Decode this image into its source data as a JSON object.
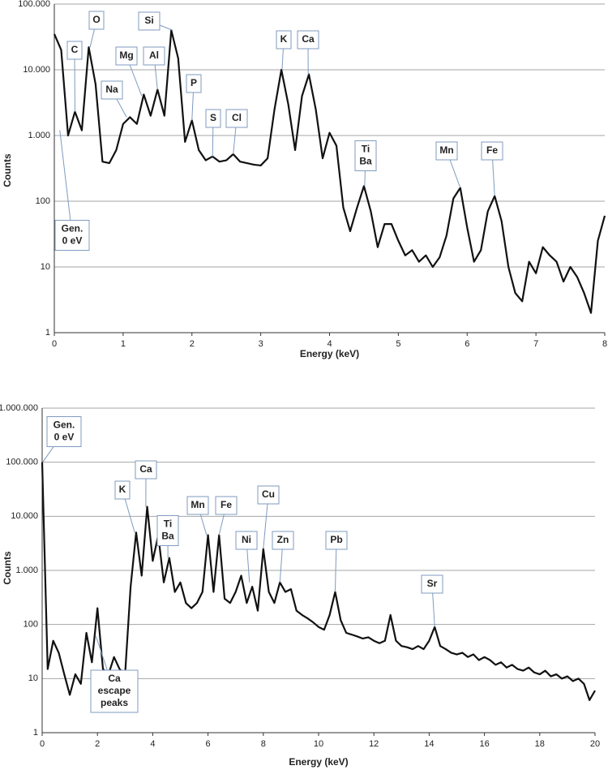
{
  "chart_data": [
    {
      "type": "line",
      "xlabel": "Energy (keV)",
      "ylabel": "Counts",
      "ylog": true,
      "grid": true,
      "color": "#111111",
      "xlim": [
        0,
        8
      ],
      "xticks": [
        0,
        1,
        2,
        3,
        4,
        5,
        6,
        7,
        8
      ],
      "ylim": [
        1,
        100000
      ],
      "yticks": [
        1,
        10,
        100,
        {
          "value": 1000,
          "label": "1.000"
        },
        {
          "value": 10000,
          "label": "10.000"
        },
        {
          "value": 100000,
          "label": "100.000"
        }
      ],
      "x": [
        0,
        0.1,
        0.2,
        0.3,
        0.4,
        0.5,
        0.6,
        0.7,
        0.8,
        0.9,
        1,
        1.1,
        1.2,
        1.3,
        1.4,
        1.5,
        1.6,
        1.7,
        1.8,
        1.9,
        2,
        2.1,
        2.2,
        2.3,
        2.4,
        2.5,
        2.6,
        2.7,
        2.8,
        2.9,
        3,
        3.1,
        3.2,
        3.3,
        3.4,
        3.5,
        3.6,
        3.7,
        3.8,
        3.9,
        4,
        4.1,
        4.2,
        4.3,
        4.4,
        4.5,
        4.6,
        4.7,
        4.8,
        4.9,
        5,
        5.1,
        5.2,
        5.3,
        5.4,
        5.5,
        5.6,
        5.7,
        5.8,
        5.9,
        6,
        6.1,
        6.2,
        6.3,
        6.4,
        6.5,
        6.6,
        6.7,
        6.8,
        6.9,
        7,
        7.1,
        7.2,
        7.3,
        7.4,
        7.5,
        7.6,
        7.7,
        7.8,
        7.9,
        8
      ],
      "values": [
        35000,
        20000,
        1000,
        2300,
        1200,
        22000,
        6000,
        400,
        380,
        600,
        1500,
        1900,
        1500,
        4200,
        2000,
        5000,
        2000,
        40000,
        15000,
        800,
        1700,
        600,
        420,
        480,
        400,
        420,
        520,
        400,
        380,
        360,
        350,
        450,
        2500,
        10000,
        3000,
        600,
        4000,
        8500,
        2500,
        450,
        1100,
        700,
        80,
        35,
        80,
        170,
        70,
        20,
        45,
        45,
        25,
        15,
        18,
        12,
        15,
        10,
        14,
        30,
        110,
        160,
        40,
        12,
        18,
        70,
        120,
        50,
        10,
        4,
        3,
        12,
        8,
        20,
        15,
        12,
        6,
        10,
        7,
        4,
        2,
        25,
        60
      ],
      "annotations": [
        {
          "lines": [
            "Gen.",
            "0 eV"
          ],
          "x": 0.08,
          "y": 1200
        },
        {
          "lines": [
            "C"
          ],
          "x": 0.3,
          "y": 2300
        },
        {
          "lines": [
            "O"
          ],
          "x": 0.52,
          "y": 22000
        },
        {
          "lines": [
            "Na"
          ],
          "x": 1.05,
          "y": 1900
        },
        {
          "lines": [
            "Mg"
          ],
          "x": 1.27,
          "y": 4000
        },
        {
          "lines": [
            "Al"
          ],
          "x": 1.5,
          "y": 5000
        },
        {
          "lines": [
            "Si"
          ],
          "x": 1.72,
          "y": 40000
        },
        {
          "lines": [
            "P"
          ],
          "x": 2.0,
          "y": 1700
        },
        {
          "lines": [
            "S"
          ],
          "x": 2.3,
          "y": 480
        },
        {
          "lines": [
            "Cl"
          ],
          "x": 2.6,
          "y": 520
        },
        {
          "lines": [
            "K"
          ],
          "x": 3.31,
          "y": 10000
        },
        {
          "lines": [
            "Ca"
          ],
          "x": 3.69,
          "y": 8500
        },
        {
          "lines": [
            "Ti",
            "Ba"
          ],
          "x": 4.51,
          "y": 170
        },
        {
          "lines": [
            "Mn"
          ],
          "x": 5.9,
          "y": 160
        },
        {
          "lines": [
            "Fe"
          ],
          "x": 6.4,
          "y": 120
        }
      ]
    },
    {
      "type": "line",
      "xlabel": "Energy (keV)",
      "ylabel": "Counts",
      "ylog": true,
      "grid": true,
      "color": "#111111",
      "xlim": [
        0,
        20
      ],
      "xticks": [
        0,
        2,
        4,
        6,
        8,
        10,
        12,
        14,
        16,
        18,
        20
      ],
      "ylim": [
        1,
        1000000
      ],
      "yticks": [
        1,
        10,
        100,
        {
          "value": 1000,
          "label": "1.000"
        },
        {
          "value": 10000,
          "label": "10.000"
        },
        {
          "value": 100000,
          "label": "100.000"
        },
        {
          "value": 1000000,
          "label": "1.000.000"
        }
      ],
      "x": [
        0,
        0.2,
        0.4,
        0.6,
        0.8,
        1,
        1.2,
        1.4,
        1.6,
        1.8,
        2,
        2.2,
        2.4,
        2.6,
        2.8,
        3,
        3.2,
        3.4,
        3.6,
        3.8,
        4,
        4.2,
        4.4,
        4.6,
        4.8,
        5,
        5.2,
        5.4,
        5.6,
        5.8,
        6,
        6.2,
        6.4,
        6.6,
        6.8,
        7,
        7.2,
        7.4,
        7.6,
        7.8,
        8,
        8.2,
        8.4,
        8.6,
        8.8,
        9,
        9.2,
        9.4,
        9.6,
        9.8,
        10,
        10.2,
        10.4,
        10.6,
        10.8,
        11,
        11.2,
        11.4,
        11.6,
        11.8,
        12,
        12.2,
        12.4,
        12.6,
        12.8,
        13,
        13.2,
        13.4,
        13.6,
        13.8,
        14,
        14.2,
        14.4,
        14.6,
        14.8,
        15,
        15.2,
        15.4,
        15.6,
        15.8,
        16,
        16.2,
        16.4,
        16.6,
        16.8,
        17,
        17.2,
        17.4,
        17.6,
        17.8,
        18,
        18.2,
        18.4,
        18.6,
        18.8,
        19,
        19.2,
        19.4,
        19.6,
        19.8,
        20
      ],
      "values": [
        100000,
        15,
        50,
        30,
        12,
        5,
        12,
        8,
        70,
        20,
        200,
        15,
        12,
        25,
        15,
        12,
        500,
        5000,
        800,
        15000,
        1500,
        4500,
        600,
        1700,
        400,
        600,
        250,
        200,
        250,
        400,
        4500,
        400,
        4500,
        300,
        250,
        400,
        800,
        250,
        500,
        180,
        2500,
        400,
        250,
        600,
        400,
        450,
        180,
        150,
        130,
        110,
        90,
        80,
        150,
        400,
        120,
        70,
        65,
        60,
        55,
        58,
        50,
        45,
        50,
        150,
        50,
        40,
        38,
        35,
        40,
        35,
        50,
        90,
        40,
        35,
        30,
        28,
        30,
        25,
        28,
        22,
        25,
        22,
        18,
        20,
        16,
        18,
        15,
        14,
        16,
        13,
        12,
        14,
        11,
        12,
        10,
        11,
        9,
        10,
        8,
        4,
        6
      ],
      "annotations": [
        {
          "lines": [
            "Gen.",
            "0 eV"
          ],
          "x": 0.02,
          "y": 100000
        },
        {
          "lines": [
            "K"
          ],
          "x": 3.35,
          "y": 5000
        },
        {
          "lines": [
            "Ca"
          ],
          "x": 3.75,
          "y": 15000
        },
        {
          "lines": [
            "Ti",
            "Ba"
          ],
          "x": 4.55,
          "y": 1700
        },
        {
          "lines": [
            "Mn"
          ],
          "x": 5.95,
          "y": 4500
        },
        {
          "lines": [
            "Fe"
          ],
          "x": 6.4,
          "y": 4500
        },
        {
          "lines": [
            "Ni"
          ],
          "x": 7.5,
          "y": 600
        },
        {
          "lines": [
            "Cu"
          ],
          "x": 8.0,
          "y": 2500
        },
        {
          "lines": [
            "Zn"
          ],
          "x": 8.6,
          "y": 600
        },
        {
          "lines": [
            "Pb"
          ],
          "x": 10.6,
          "y": 400
        },
        {
          "lines": [
            "Sr"
          ],
          "x": 14.2,
          "y": 90
        },
        {
          "lines": [
            "Ca",
            "escape",
            "peaks"
          ],
          "x": 1.95,
          "y": 60
        }
      ]
    }
  ]
}
